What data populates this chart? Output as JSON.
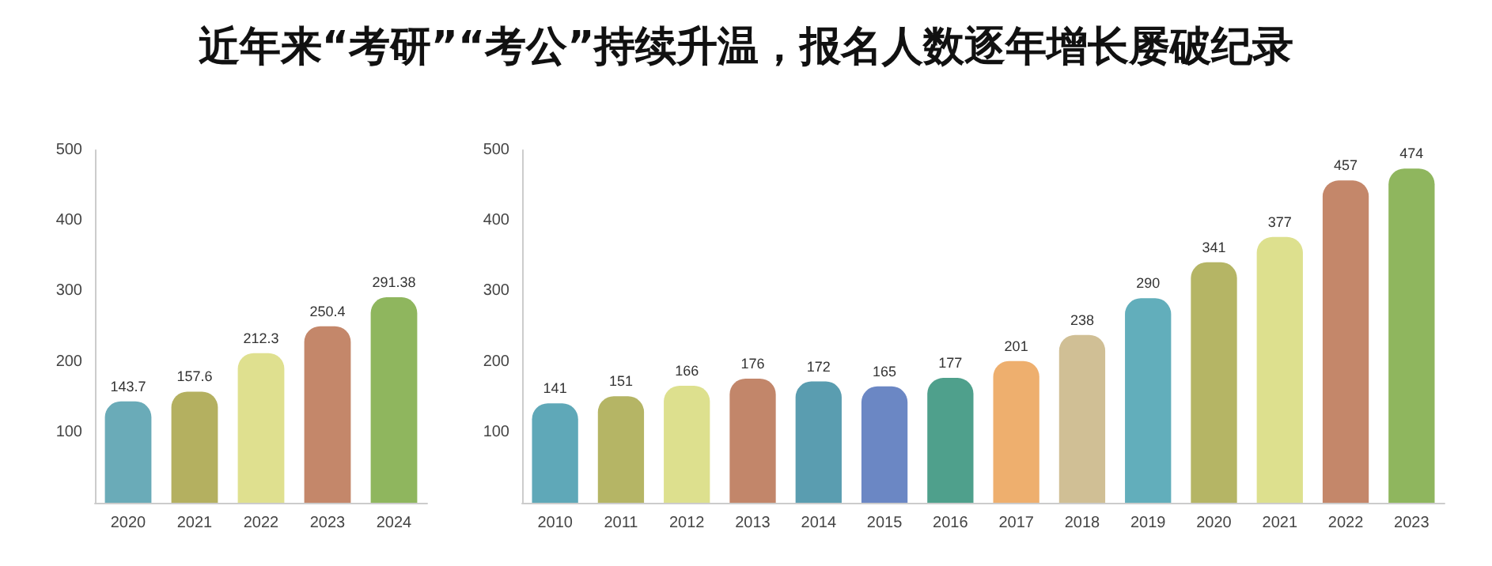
{
  "chart_data": [
    {
      "type": "bar",
      "title": "近年来“考研”“考公”持续升温，报名人数逐年增长屡破纪录",
      "categories": [
        "2020",
        "2021",
        "2022",
        "2023",
        "2024"
      ],
      "values": [
        143.7,
        157.6,
        212.3,
        250.4,
        291.38
      ],
      "colors": [
        "#6aabb8",
        "#b4b060",
        "#dfe08f",
        "#c4876a",
        "#8fb65e"
      ],
      "ylim": [
        0,
        500
      ],
      "yticks": [
        100,
        200,
        300,
        400,
        500
      ],
      "grid": false,
      "data_labels": true
    },
    {
      "type": "bar",
      "categories": [
        "2010",
        "2011",
        "2012",
        "2013",
        "2014",
        "2015",
        "2016",
        "2017",
        "2018",
        "2019",
        "2020",
        "2021",
        "2022",
        "2023"
      ],
      "values": [
        141,
        151,
        166,
        176,
        172,
        165,
        177,
        201,
        238,
        290,
        341,
        377,
        457,
        474
      ],
      "colors": [
        "#5fa8b8",
        "#b5b565",
        "#dde08e",
        "#c2866a",
        "#5a9db0",
        "#6b87c4",
        "#4fa08c",
        "#eeaf6e",
        "#d0bf95",
        "#62aebb",
        "#b5b565",
        "#dde08e",
        "#c4876a",
        "#8fb65e"
      ],
      "ylim": [
        0,
        500
      ],
      "yticks": [
        100,
        200,
        300,
        400,
        500
      ],
      "grid": false,
      "data_labels": true
    }
  ]
}
